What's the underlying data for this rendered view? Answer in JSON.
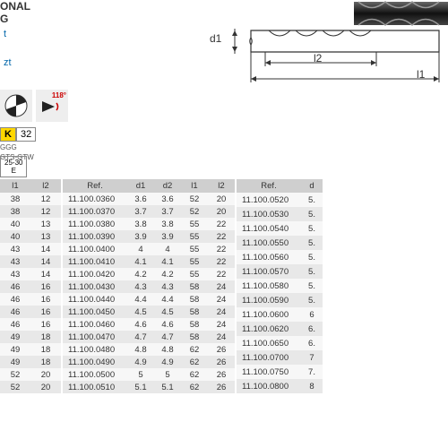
{
  "header": {
    "line1": "ONAL",
    "line2": "G",
    "line3": "t",
    "line4": "zt"
  },
  "diagram": {
    "d1": "d1",
    "l1": "l1",
    "l2": "l2"
  },
  "icons": {
    "angle": "118°"
  },
  "kbox": {
    "k": "K",
    "val": "32",
    "g1": "GGG",
    "g2": "GTS-GTW"
  },
  "ebox": {
    "r": "25-30",
    "e": "E"
  },
  "table1": {
    "headers": [
      "l1",
      "l2"
    ],
    "rows": [
      [
        "38",
        "12"
      ],
      [
        "38",
        "12"
      ],
      [
        "40",
        "13"
      ],
      [
        "40",
        "13"
      ],
      [
        "43",
        "14"
      ],
      [
        "43",
        "14"
      ],
      [
        "43",
        "14"
      ],
      [
        "46",
        "16"
      ],
      [
        "46",
        "16"
      ],
      [
        "46",
        "16"
      ],
      [
        "46",
        "16"
      ],
      [
        "49",
        "18"
      ],
      [
        "49",
        "18"
      ],
      [
        "49",
        "18"
      ],
      [
        "52",
        "20"
      ],
      [
        "52",
        "20"
      ]
    ]
  },
  "table2": {
    "headers": [
      "Ref.",
      "d1",
      "d2",
      "l1",
      "l2"
    ],
    "rows": [
      [
        "11.100.0360",
        "3.6",
        "3.6",
        "52",
        "20"
      ],
      [
        "11.100.0370",
        "3.7",
        "3.7",
        "52",
        "20"
      ],
      [
        "11.100.0380",
        "3.8",
        "3.8",
        "55",
        "22"
      ],
      [
        "11.100.0390",
        "3.9",
        "3.9",
        "55",
        "22"
      ],
      [
        "11.100.0400",
        "4",
        "4",
        "55",
        "22"
      ],
      [
        "11.100.0410",
        "4.1",
        "4.1",
        "55",
        "22"
      ],
      [
        "11.100.0420",
        "4.2",
        "4.2",
        "55",
        "22"
      ],
      [
        "11.100.0430",
        "4.3",
        "4.3",
        "58",
        "24"
      ],
      [
        "11.100.0440",
        "4.4",
        "4.4",
        "58",
        "24"
      ],
      [
        "11.100.0450",
        "4.5",
        "4.5",
        "58",
        "24"
      ],
      [
        "11.100.0460",
        "4.6",
        "4.6",
        "58",
        "24"
      ],
      [
        "11.100.0470",
        "4.7",
        "4.7",
        "58",
        "24"
      ],
      [
        "11.100.0480",
        "4.8",
        "4.8",
        "62",
        "26"
      ],
      [
        "11.100.0490",
        "4.9",
        "4.9",
        "62",
        "26"
      ],
      [
        "11.100.0500",
        "5",
        "5",
        "62",
        "26"
      ],
      [
        "11.100.0510",
        "5.1",
        "5.1",
        "62",
        "26"
      ]
    ]
  },
  "table3": {
    "headers": [
      "Ref.",
      "d"
    ],
    "rows": [
      [
        "11.100.0520",
        "5."
      ],
      [
        "11.100.0530",
        "5."
      ],
      [
        "11.100.0540",
        "5."
      ],
      [
        "11.100.0550",
        "5."
      ],
      [
        "11.100.0560",
        "5."
      ],
      [
        "11.100.0570",
        "5."
      ],
      [
        "11.100.0580",
        "5."
      ],
      [
        "11.100.0590",
        "5."
      ],
      [
        "11.100.0600",
        "6"
      ],
      [
        "11.100.0620",
        "6."
      ],
      [
        "11.100.0650",
        "6."
      ],
      [
        "11.100.0700",
        "7"
      ],
      [
        "11.100.0750",
        "7."
      ],
      [
        "11.100.0800",
        "8"
      ]
    ]
  },
  "colors": {
    "header_bg": "#cfcfcf",
    "row_even": "#e8e8e8",
    "row_odd": "#f7f7f7",
    "link": "#0066aa",
    "kbg": "#ffd700",
    "angle": "#c00"
  }
}
